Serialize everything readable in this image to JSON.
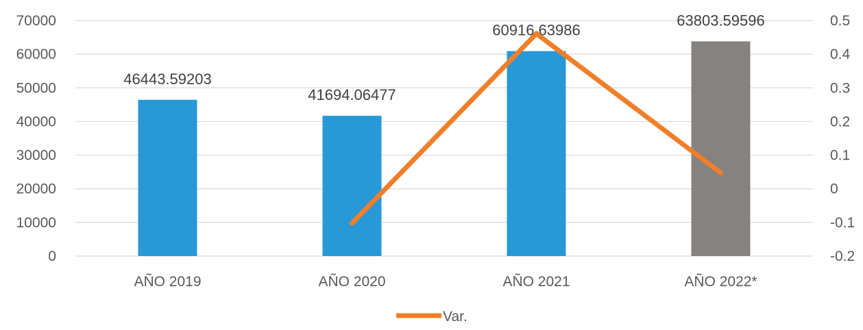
{
  "chart_data": {
    "type": "bar+line",
    "title": "",
    "categories": [
      "AÑO 2019",
      "AÑO 2020",
      "AÑO 2021",
      "AÑO 2022*"
    ],
    "bars": {
      "values": [
        46443.59203,
        41694.06477,
        60916.63986,
        63803.59596
      ],
      "labels": [
        "46443.59203",
        "41694.06477",
        "60916.63986",
        "63803.59596"
      ],
      "colors": [
        "#2898D6",
        "#2898D6",
        "#2898D6",
        "#868280"
      ]
    },
    "line": {
      "name": "Var.",
      "color": "#F07F2A",
      "points": [
        {
          "category": "AÑO 2020",
          "value": -0.1023
        },
        {
          "category": "AÑO 2021",
          "value": 0.461
        },
        {
          "category": "AÑO 2022*",
          "value": 0.0474
        }
      ]
    },
    "y_left": {
      "min": 0,
      "max": 70000,
      "ticks": [
        "0",
        "10000",
        "20000",
        "30000",
        "40000",
        "50000",
        "60000",
        "70000"
      ]
    },
    "y_right": {
      "min": -0.2,
      "max": 0.5,
      "ticks": [
        "-0.2",
        "-0.1",
        "0",
        "0.1",
        "0.2",
        "0.3",
        "0.4",
        "0.5"
      ]
    },
    "grid": true,
    "legend": {
      "position": "bottom",
      "entries": [
        "Var."
      ]
    }
  }
}
